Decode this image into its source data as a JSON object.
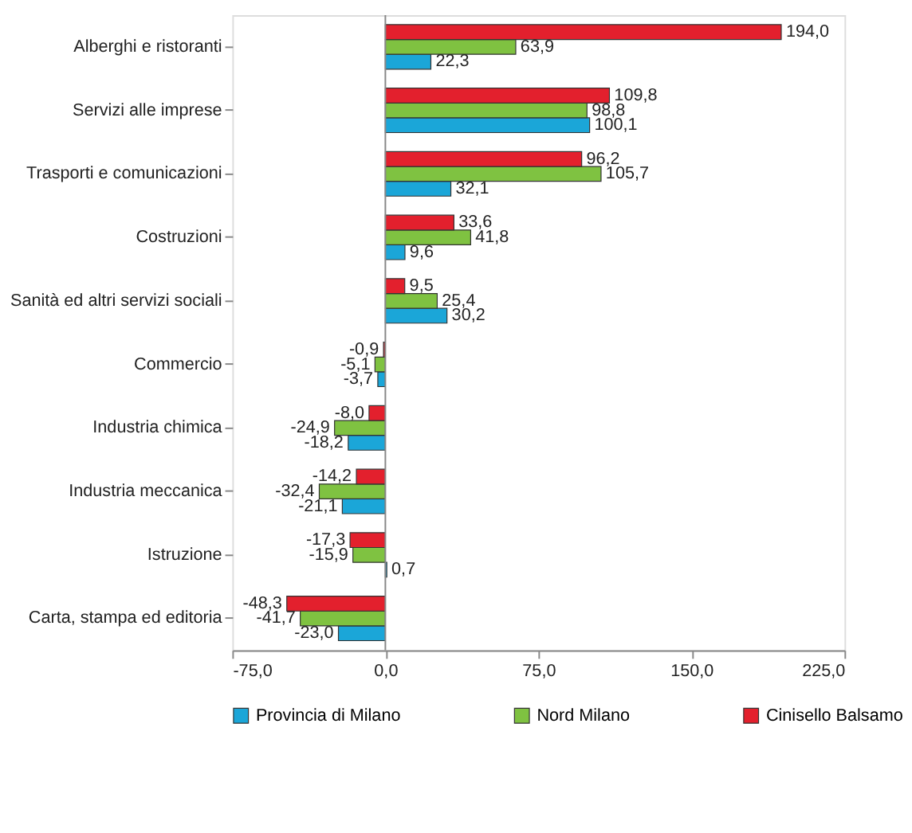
{
  "chart_data": {
    "type": "bar",
    "orientation": "horizontal",
    "categories": [
      "Alberghi e ristoranti",
      "Servizi alle imprese",
      "Trasporti e comunicazioni",
      "Costruzioni",
      "Sanità ed altri servizi sociali",
      "Commercio",
      "Industria chimica",
      "Industria meccanica",
      "Istruzione",
      "Carta, stampa ed editoria"
    ],
    "series": [
      {
        "name": "Provincia di Milano",
        "color": "#1ba6d8",
        "values": [
          22.3,
          100.1,
          32.1,
          9.6,
          30.2,
          -3.7,
          -18.2,
          -21.1,
          0.7,
          -23.0
        ],
        "value_labels": [
          "22,3",
          "100,1",
          "32,1",
          "9,6",
          "30,2",
          "-3,7",
          "-18,2",
          "-21,1",
          "0,7",
          "-23,0"
        ]
      },
      {
        "name": "Nord Milano",
        "color": "#7fc241",
        "values": [
          63.9,
          98.8,
          105.7,
          41.8,
          25.4,
          -5.1,
          -24.9,
          -32.4,
          -15.9,
          -41.7
        ],
        "value_labels": [
          "63,9",
          "98,8",
          "105,7",
          "41,8",
          "25,4",
          "-5,1",
          "-24,9",
          "-32,4",
          "-15,9",
          "-41,7"
        ]
      },
      {
        "name": "Cinisello Balsamo",
        "color": "#e3202d",
        "values": [
          194.0,
          109.8,
          96.2,
          33.6,
          9.5,
          -0.9,
          -8.0,
          -14.2,
          -17.3,
          -48.3
        ],
        "value_labels": [
          "194,0",
          "109,8",
          "96,2",
          "33,6",
          "9,5",
          "-0,9",
          "-8,0",
          "-14,2",
          "-17,3",
          "-48,3"
        ]
      }
    ],
    "xlim": [
      -75,
      225
    ],
    "xticks": [
      {
        "value": -75,
        "label": "-75,0"
      },
      {
        "value": 0,
        "label": "0,0"
      },
      {
        "value": 75,
        "label": "75,0"
      },
      {
        "value": 150,
        "label": "150,0"
      },
      {
        "value": 225,
        "label": "225,0"
      }
    ],
    "ref_lines": [
      {
        "axis": "x",
        "value": 0
      }
    ],
    "grid": false,
    "legend": "bottom"
  }
}
